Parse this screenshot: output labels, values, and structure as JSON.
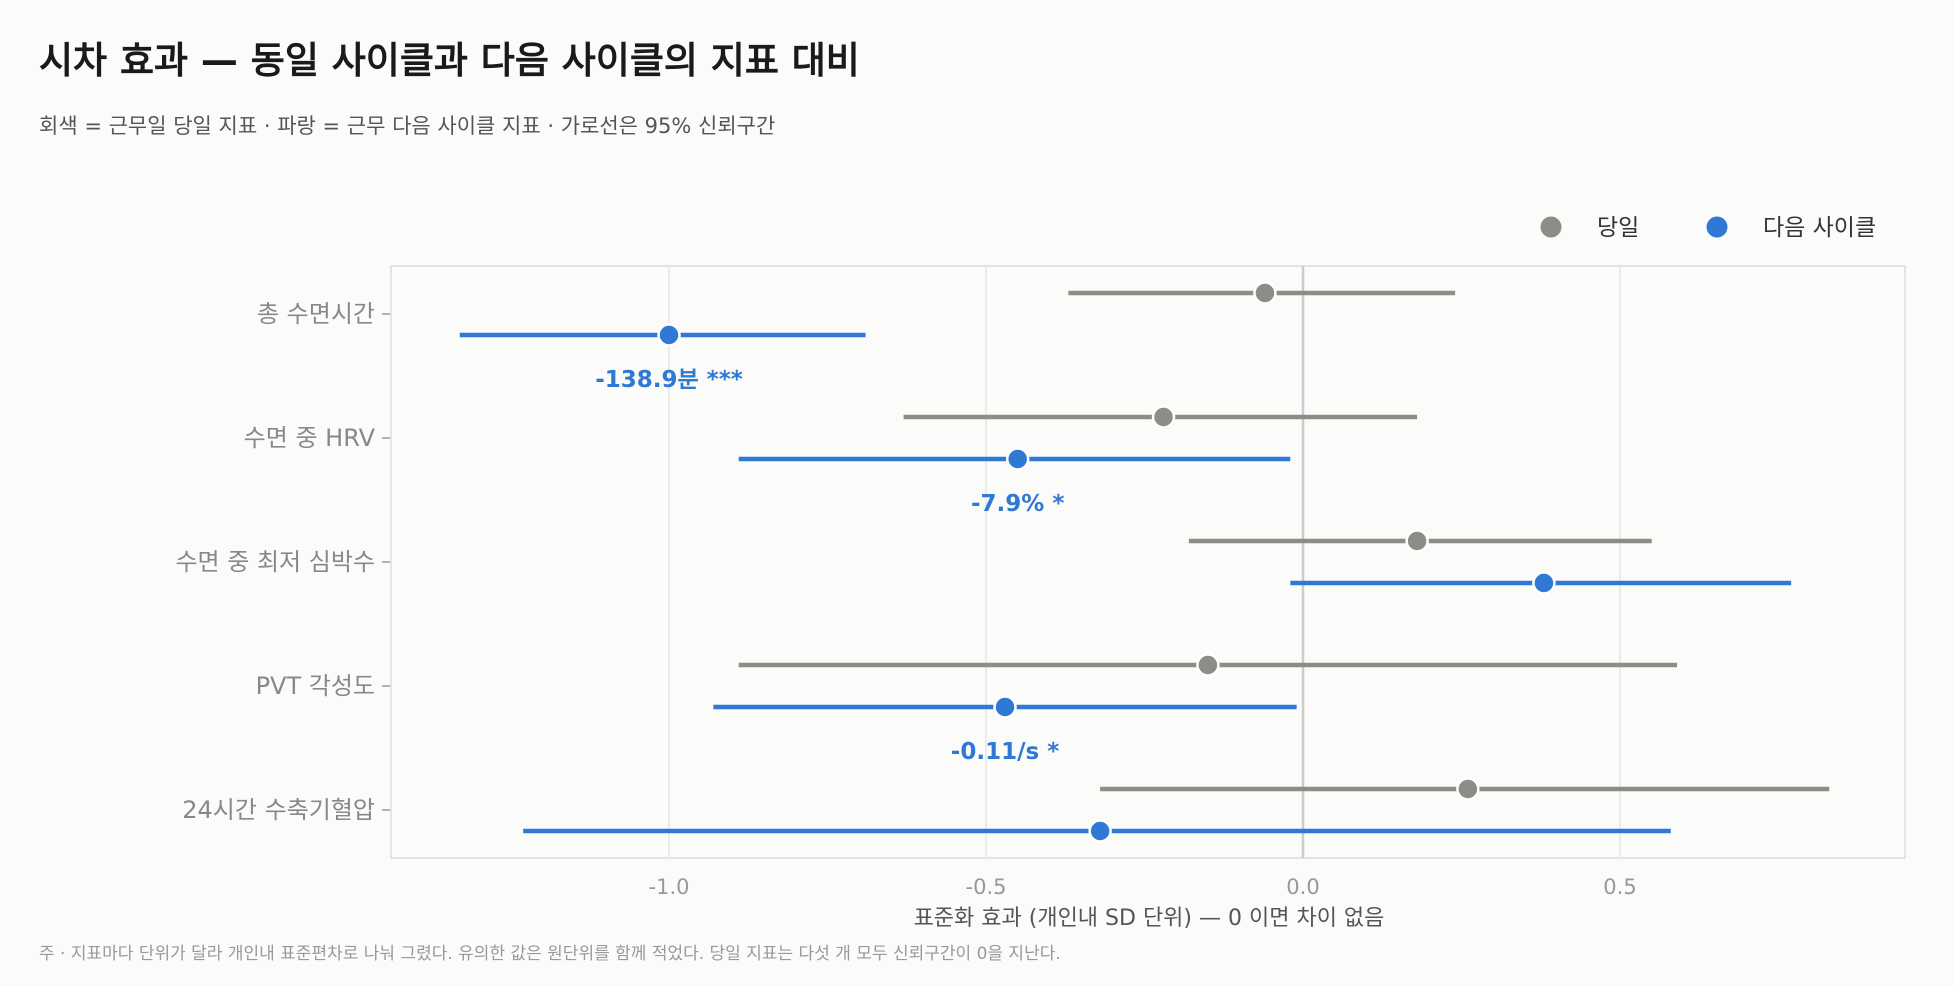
{
  "colors": {
    "same_day": "#8c8c88",
    "next_cycle": "#2f78d4",
    "background": "#fbfbf9",
    "frame": "#dddddd",
    "grid": "#e6e6e6",
    "zero_line": "#cccccc"
  },
  "legend": {
    "position": "top-right",
    "items": [
      {
        "label": "당일",
        "color": "#8c8c88"
      },
      {
        "label": "다음 사이클",
        "color": "#2f78d4"
      }
    ]
  },
  "chart_data": {
    "type": "forest",
    "title": "시차 효과 — 동일 사이클과 다음 사이클의 지표 대비",
    "subtitle": "회색 = 근무일 당일 지표 · 파랑 = 근무 다음 사이클 지표 · 가로선은 95% 신뢰구간",
    "xlabel": "표준화 효과 (개인내 SD 단위) — 0 이면 차이 없음",
    "ylabel": "",
    "xlim": [
      -1.45,
      0.95
    ],
    "xticks": [
      -1.0,
      -0.5,
      0.0,
      0.5
    ],
    "xtick_labels": [
      "-1.0",
      "-0.5",
      "0.0",
      "0.5"
    ],
    "grid": true,
    "categories": [
      "총 수면시간",
      "수면 중 HRV",
      "수면 중 최저 심박수",
      "PVT 각성도",
      "24시간 수축기혈압"
    ],
    "series": [
      {
        "name": "당일",
        "color": "#8c8c88",
        "points": [
          {
            "est": -0.06,
            "lo": -0.37,
            "hi": 0.24
          },
          {
            "est": -0.22,
            "lo": -0.63,
            "hi": 0.18
          },
          {
            "est": 0.18,
            "lo": -0.18,
            "hi": 0.55
          },
          {
            "est": -0.15,
            "lo": -0.89,
            "hi": 0.59
          },
          {
            "est": 0.26,
            "lo": -0.32,
            "hi": 0.83
          }
        ]
      },
      {
        "name": "다음 사이클",
        "color": "#2f78d4",
        "points": [
          {
            "est": -1.0,
            "lo": -1.33,
            "hi": -0.69,
            "label": "-138.9분  ***"
          },
          {
            "est": -0.45,
            "lo": -0.89,
            "hi": -0.02,
            "label": "-7.9%  *"
          },
          {
            "est": 0.38,
            "lo": -0.02,
            "hi": 0.77
          },
          {
            "est": -0.47,
            "lo": -0.93,
            "hi": -0.01,
            "label": "-0.11/s  *"
          },
          {
            "est": -0.32,
            "lo": -1.23,
            "hi": 0.58
          }
        ]
      }
    ],
    "footnote": "주 · 지표마다 단위가 달라 개인내 표준편차로 나눠 그렸다. 유의한 값은 원단위를 함께 적었다. 당일 지표는 다섯 개 모두 신뢰구간이 0을 지난다."
  }
}
